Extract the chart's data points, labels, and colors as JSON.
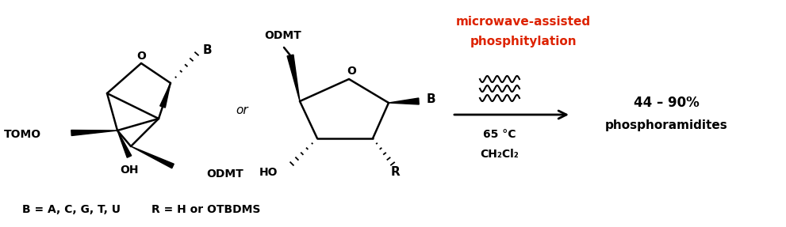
{
  "background_color": "#ffffff",
  "figsize": [
    9.91,
    2.87
  ],
  "dpi": 100,
  "microwave_text_line1": "microwave-assisted",
  "microwave_text_line2": "phosphitylation",
  "microwave_color": "#dd2200",
  "condition1": "65 °C",
  "condition2": "CH₂Cl₂",
  "product_text_line1": "44 – 90%",
  "product_text_line2": "phosphoramidites",
  "bottom_text1": "B = A, C, G, T, U",
  "bottom_text2": "R = H or OTBDMS",
  "or_text": "or"
}
